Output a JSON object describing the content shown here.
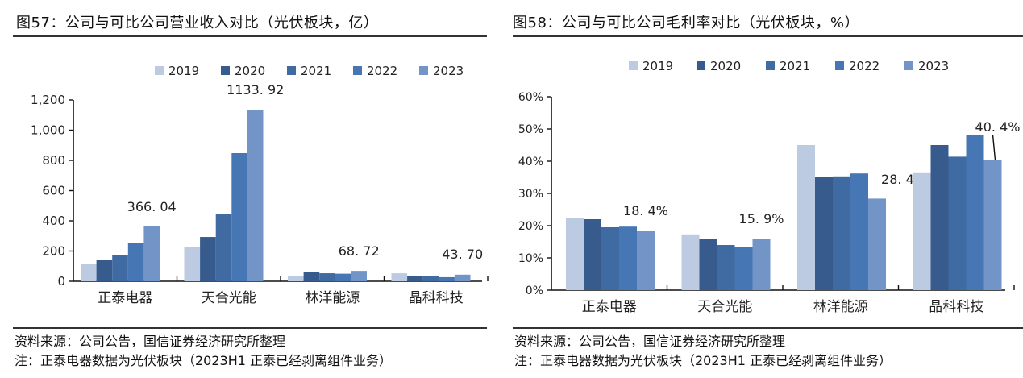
{
  "chart_data": [
    {
      "type": "bar",
      "title": "图57：公司与可比公司营业收入对比（光伏板块，亿）",
      "xlabel": "",
      "ylabel": "",
      "ylim": [
        0,
        1200
      ],
      "yticks": [
        0,
        200,
        400,
        600,
        800,
        1000,
        1200
      ],
      "ytick_labels": [
        "0",
        "200",
        "400",
        "600",
        "800",
        "1,000",
        "1,200"
      ],
      "categories": [
        "正泰电器",
        "天合光能",
        "林洋能源",
        "晶科科技"
      ],
      "legend_position": "top-right",
      "series": [
        {
          "name": "2019",
          "color": "#BDCBE2",
          "values": [
            117,
            229,
            32,
            53
          ]
        },
        {
          "name": "2020",
          "color": "#365B8C",
          "values": [
            139,
            293,
            59,
            37
          ]
        },
        {
          "name": "2021",
          "color": "#3F6BA2",
          "values": [
            176,
            443,
            53,
            37
          ]
        },
        {
          "name": "2022",
          "color": "#4677B4",
          "values": [
            256,
            848,
            50,
            27
          ]
        },
        {
          "name": "2023",
          "color": "#7294C6",
          "values": [
            366.04,
            1133.92,
            68.72,
            43.7
          ]
        }
      ],
      "data_labels": [
        "366. 04",
        "1133. 92",
        "68. 72",
        "43. 70"
      ],
      "grid": false
    },
    {
      "type": "bar",
      "title": "图58：公司与可比公司毛利率对比（光伏板块，%）",
      "xlabel": "",
      "ylabel": "",
      "ylim": [
        0,
        60
      ],
      "yticks": [
        0,
        10,
        20,
        30,
        40,
        50,
        60
      ],
      "ytick_labels": [
        "0%",
        "10%",
        "20%",
        "30%",
        "40%",
        "50%",
        "60%"
      ],
      "categories": [
        "正泰电器",
        "天合光能",
        "林洋能源",
        "晶科科技"
      ],
      "legend_position": "top-right",
      "series": [
        {
          "name": "2019",
          "color": "#BDCBE2",
          "values": [
            22.4,
            17.3,
            45.0,
            36.3
          ]
        },
        {
          "name": "2020",
          "color": "#365B8C",
          "values": [
            22.0,
            15.9,
            35.1,
            45.0
          ]
        },
        {
          "name": "2021",
          "color": "#3F6BA2",
          "values": [
            19.5,
            14.0,
            35.3,
            41.4
          ]
        },
        {
          "name": "2022",
          "color": "#4677B4",
          "values": [
            19.7,
            13.5,
            36.2,
            48.1
          ]
        },
        {
          "name": "2023",
          "color": "#7294C6",
          "values": [
            18.4,
            15.9,
            28.4,
            40.4
          ]
        }
      ],
      "data_labels": [
        "18. 4%",
        "15. 9%",
        "28. 4%",
        "40. 4%"
      ],
      "grid": false
    }
  ],
  "footer": {
    "source": "资料来源：公司公告，国信证券经济研究所整理",
    "note": "注：正泰电器数据为光伏板块（2023H1 正泰已经剥离组件业务）"
  }
}
